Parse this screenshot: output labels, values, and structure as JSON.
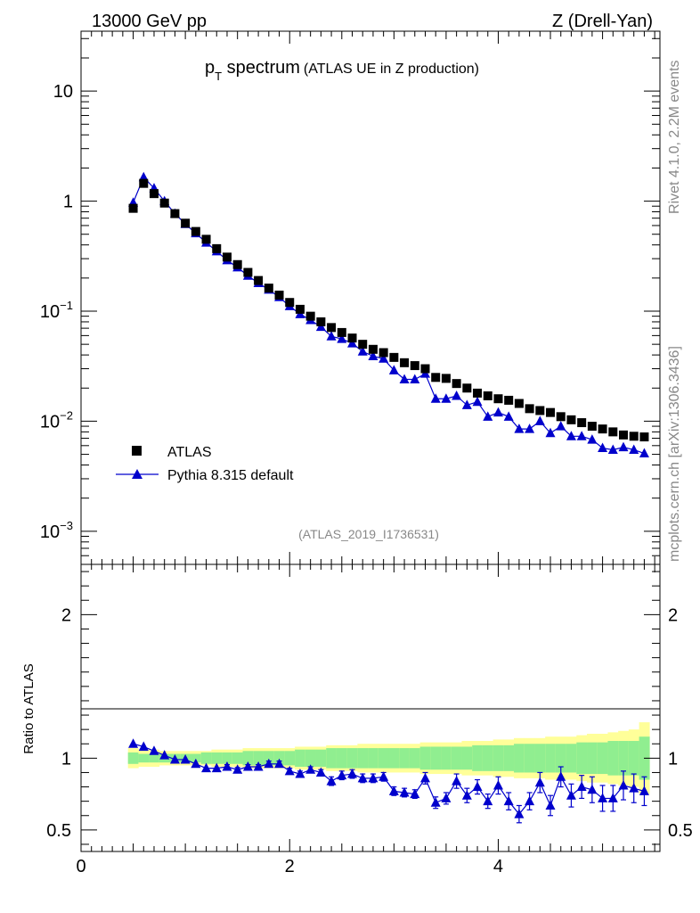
{
  "header": {
    "left": "13000 GeV pp",
    "right": "Z (Drell-Yan)"
  },
  "title": {
    "main_p": "p",
    "main_sub": "T",
    "main_rest": " spectrum",
    "small": "(ATLAS UE in Z production)"
  },
  "side": {
    "rivet": "Rivet 4.1.0,  2.2M events",
    "mcplots": "mcplots.cern.ch [arXiv:1306.3436]"
  },
  "analysis_id": "(ATLAS_2019_I1736531)",
  "colors": {
    "data": "#000000",
    "mc": "#0000cc",
    "band_inner": "#90ee90",
    "band_outer": "#ffff99"
  },
  "chart_data": [
    {
      "type": "scatter",
      "panel": "main",
      "yscale": "log",
      "xlim": [
        0,
        5.55
      ],
      "ylim": [
        0.0005,
        35
      ],
      "ytick_labels": [
        {
          "value": 10,
          "base": "10",
          "exp": ""
        },
        {
          "value": 1,
          "base": "1",
          "exp": ""
        },
        {
          "value": 0.1,
          "base": "10",
          "exp": "−1"
        },
        {
          "value": 0.01,
          "base": "10",
          "exp": "−2"
        },
        {
          "value": 0.001,
          "base": "10",
          "exp": "−3"
        }
      ],
      "legend": {
        "position": "bottom-left",
        "entries": [
          "ATLAS",
          "Pythia 8.315 default"
        ]
      },
      "x": [
        0.5,
        0.6,
        0.7,
        0.8,
        0.9,
        1.0,
        1.1,
        1.2,
        1.3,
        1.4,
        1.5,
        1.6,
        1.7,
        1.8,
        1.9,
        2.0,
        2.1,
        2.2,
        2.3,
        2.4,
        2.5,
        2.6,
        2.7,
        2.8,
        2.9,
        3.0,
        3.1,
        3.2,
        3.3,
        3.4,
        3.5,
        3.6,
        3.7,
        3.8,
        3.9,
        4.0,
        4.1,
        4.2,
        4.3,
        4.4,
        4.5,
        4.6,
        4.7,
        4.8,
        4.9,
        5.0,
        5.1,
        5.2,
        5.3,
        5.4
      ],
      "series": [
        {
          "name": "ATLAS",
          "marker": "square",
          "values": [
            0.86,
            1.45,
            1.17,
            0.96,
            0.77,
            0.63,
            0.53,
            0.45,
            0.37,
            0.31,
            0.265,
            0.225,
            0.19,
            0.162,
            0.14,
            0.12,
            0.104,
            0.09,
            0.08,
            0.071,
            0.064,
            0.057,
            0.05,
            0.045,
            0.042,
            0.038,
            0.034,
            0.032,
            0.03,
            0.025,
            0.0245,
            0.022,
            0.02,
            0.018,
            0.017,
            0.016,
            0.0155,
            0.0145,
            0.013,
            0.0125,
            0.012,
            0.011,
            0.0103,
            0.0097,
            0.009,
            0.0085,
            0.008,
            0.0075,
            0.0073,
            0.0072
          ]
        },
        {
          "name": "Pythia 8.315 default",
          "marker": "triangle",
          "values": [
            0.97,
            1.65,
            1.31,
            1.0,
            0.77,
            0.62,
            0.51,
            0.42,
            0.35,
            0.29,
            0.25,
            0.21,
            0.18,
            0.157,
            0.134,
            0.111,
            0.094,
            0.083,
            0.072,
            0.059,
            0.056,
            0.051,
            0.043,
            0.039,
            0.037,
            0.029,
            0.024,
            0.024,
            0.027,
            0.016,
            0.016,
            0.017,
            0.014,
            0.015,
            0.011,
            0.012,
            0.011,
            0.0085,
            0.0085,
            0.01,
            0.0078,
            0.009,
            0.0073,
            0.0073,
            0.0068,
            0.0057,
            0.0055,
            0.0058,
            0.0055,
            0.0051
          ]
        }
      ]
    },
    {
      "type": "scatter",
      "panel": "ratio",
      "ylabel": "Ratio to ATLAS",
      "xlim": [
        0,
        5.55
      ],
      "ylim": [
        0.35,
        2.35
      ],
      "yticks": [
        0.5,
        1,
        2
      ],
      "ytick_labels": [
        "0.5",
        "1",
        "2"
      ],
      "xticks": [
        0,
        2,
        4
      ],
      "xtick_labels": [
        "0",
        "2",
        "4"
      ],
      "x": [
        0.5,
        0.6,
        0.7,
        0.8,
        0.9,
        1.0,
        1.1,
        1.2,
        1.3,
        1.4,
        1.5,
        1.6,
        1.7,
        1.8,
        1.9,
        2.0,
        2.1,
        2.2,
        2.3,
        2.4,
        2.5,
        2.6,
        2.7,
        2.8,
        2.9,
        3.0,
        3.1,
        3.2,
        3.3,
        3.4,
        3.5,
        3.6,
        3.7,
        3.8,
        3.9,
        4.0,
        4.1,
        4.2,
        4.3,
        4.4,
        4.5,
        4.6,
        4.7,
        4.8,
        4.9,
        5.0,
        5.1,
        5.2,
        5.3,
        5.4
      ],
      "ratio": [
        1.1,
        1.08,
        1.05,
        1.02,
        0.99,
        0.99,
        0.96,
        0.93,
        0.93,
        0.94,
        0.92,
        0.94,
        0.94,
        0.96,
        0.96,
        0.91,
        0.89,
        0.92,
        0.9,
        0.84,
        0.88,
        0.89,
        0.86,
        0.86,
        0.87,
        0.77,
        0.76,
        0.75,
        0.86,
        0.69,
        0.72,
        0.84,
        0.74,
        0.8,
        0.7,
        0.81,
        0.7,
        0.61,
        0.7,
        0.83,
        0.67,
        0.87,
        0.74,
        0.8,
        0.78,
        0.72,
        0.72,
        0.81,
        0.79,
        0.77
      ],
      "ratio_err": [
        0.01,
        0.01,
        0.01,
        0.01,
        0.01,
        0.01,
        0.01,
        0.01,
        0.01,
        0.015,
        0.015,
        0.015,
        0.015,
        0.02,
        0.02,
        0.02,
        0.02,
        0.02,
        0.02,
        0.03,
        0.03,
        0.03,
        0.03,
        0.03,
        0.03,
        0.03,
        0.03,
        0.03,
        0.04,
        0.04,
        0.04,
        0.05,
        0.05,
        0.05,
        0.05,
        0.06,
        0.06,
        0.06,
        0.06,
        0.07,
        0.07,
        0.07,
        0.08,
        0.08,
        0.09,
        0.09,
        0.09,
        0.1,
        0.1,
        0.1
      ],
      "band_inner_halfwidth": [
        0.04,
        0.03,
        0.03,
        0.03,
        0.03,
        0.03,
        0.03,
        0.04,
        0.04,
        0.04,
        0.04,
        0.05,
        0.05,
        0.05,
        0.05,
        0.05,
        0.06,
        0.06,
        0.06,
        0.07,
        0.07,
        0.07,
        0.07,
        0.07,
        0.07,
        0.07,
        0.07,
        0.07,
        0.08,
        0.08,
        0.08,
        0.08,
        0.08,
        0.09,
        0.09,
        0.09,
        0.09,
        0.1,
        0.1,
        0.1,
        0.1,
        0.1,
        0.1,
        0.11,
        0.11,
        0.11,
        0.12,
        0.12,
        0.12,
        0.15
      ],
      "band_outer_halfwidth": [
        0.07,
        0.06,
        0.06,
        0.05,
        0.05,
        0.05,
        0.05,
        0.05,
        0.06,
        0.06,
        0.06,
        0.07,
        0.07,
        0.07,
        0.07,
        0.07,
        0.08,
        0.08,
        0.08,
        0.09,
        0.09,
        0.09,
        0.1,
        0.1,
        0.1,
        0.1,
        0.1,
        0.1,
        0.11,
        0.11,
        0.11,
        0.11,
        0.12,
        0.12,
        0.12,
        0.13,
        0.13,
        0.14,
        0.14,
        0.14,
        0.15,
        0.15,
        0.15,
        0.16,
        0.17,
        0.17,
        0.18,
        0.19,
        0.2,
        0.25
      ]
    }
  ]
}
